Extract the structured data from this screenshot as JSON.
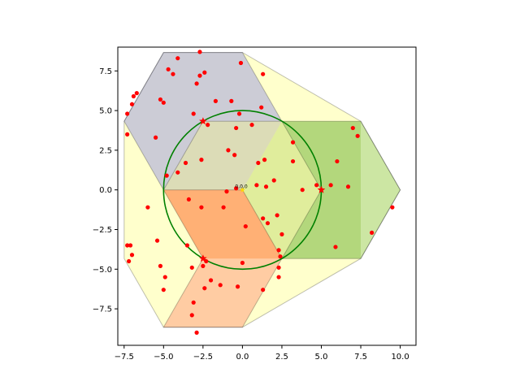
{
  "chart_data": {
    "type": "scatter",
    "title": "",
    "xlabel": "",
    "ylabel": "",
    "xlim": [
      -7.9,
      11.0
    ],
    "ylim": [
      -9.8,
      9.0
    ],
    "grid": false,
    "x_ticks": [
      -7.5,
      -5.0,
      -2.5,
      0.0,
      2.5,
      5.0,
      7.5,
      10.0
    ],
    "x_tick_labels": [
      "−7.5",
      "−5.0",
      "−2.5",
      "0.0",
      "2.5",
      "5.0",
      "7.5",
      "10.0"
    ],
    "y_ticks": [
      -7.5,
      -5.0,
      -2.5,
      0.0,
      2.5,
      5.0,
      7.5
    ],
    "y_tick_labels": [
      "−7.5",
      "−5.0",
      "−2.5",
      "0.0",
      "2.5",
      "5.0",
      "7.5"
    ],
    "outer_hull": {
      "color": "#ffff00",
      "points": [
        [
          -5.0,
          8.66
        ],
        [
          0.0,
          8.66
        ],
        [
          7.5,
          4.33
        ],
        [
          10.0,
          0.0
        ],
        [
          7.5,
          -4.33
        ],
        [
          0.0,
          -8.66
        ],
        [
          -5.0,
          -8.66
        ],
        [
          -7.5,
          -4.33
        ],
        [
          -7.5,
          4.33
        ]
      ]
    },
    "hexagons": [
      {
        "color": "#0000ff",
        "points": [
          [
            -2.5,
            4.33
          ],
          [
            2.5,
            4.33
          ],
          [
            0.0,
            8.66
          ],
          [
            -5.0,
            8.66
          ],
          [
            -7.5,
            4.33
          ],
          [
            -5.0,
            0.0
          ]
        ]
      },
      {
        "color": "#ff0000",
        "points": [
          [
            -2.5,
            -4.33
          ],
          [
            -5.0,
            0.0
          ],
          [
            0.0,
            0.0
          ],
          [
            2.5,
            -4.33
          ],
          [
            0.0,
            -8.66
          ],
          [
            -5.0,
            -8.66
          ]
        ]
      },
      {
        "color": "#008000",
        "points": [
          [
            5.0,
            0.0
          ],
          [
            2.5,
            4.33
          ],
          [
            7.5,
            4.33
          ],
          [
            10.0,
            0.0
          ],
          [
            7.5,
            -4.33
          ],
          [
            2.5,
            -4.33
          ]
        ]
      }
    ],
    "overlap_regions": [
      {
        "color": "#808080",
        "points": [
          [
            -2.5,
            4.33
          ],
          [
            2.5,
            4.33
          ],
          [
            0.0,
            0.0
          ],
          [
            -5.0,
            0.0
          ]
        ]
      },
      {
        "color": "#ff8000",
        "points": [
          [
            -5.0,
            0.0
          ],
          [
            0.0,
            0.0
          ],
          [
            2.5,
            -4.33
          ],
          [
            -2.5,
            -4.33
          ]
        ]
      },
      {
        "color": "#90c020",
        "points": [
          [
            2.5,
            4.33
          ],
          [
            7.5,
            4.33
          ],
          [
            7.5,
            -4.33
          ],
          [
            2.5,
            -4.33
          ],
          [
            0.0,
            0.0
          ]
        ]
      }
    ],
    "circle": {
      "center": [
        0.0,
        0.0
      ],
      "radius": 5.0,
      "color": "#008000"
    },
    "centers": {
      "color": "#ff0000",
      "points": [
        [
          -2.5,
          4.33
        ],
        [
          -2.5,
          -4.33
        ],
        [
          5.0,
          0.0
        ]
      ]
    },
    "origin_marker": {
      "x": 0.0,
      "y": 0.0,
      "label": "0,0,0",
      "color": "#ffd700"
    },
    "points": {
      "color": "#ff0000",
      "values": [
        [
          -2.7,
          8.7
        ],
        [
          -4.1,
          8.3
        ],
        [
          -4.7,
          7.6
        ],
        [
          -4.4,
          7.3
        ],
        [
          -2.4,
          7.4
        ],
        [
          -2.7,
          7.2
        ],
        [
          -0.1,
          8.0
        ],
        [
          1.3,
          7.3
        ],
        [
          -2.9,
          6.7
        ],
        [
          -6.7,
          6.1
        ],
        [
          -6.9,
          5.9
        ],
        [
          -7.0,
          5.4
        ],
        [
          -7.3,
          4.8
        ],
        [
          -5.2,
          5.7
        ],
        [
          -5.0,
          5.5
        ],
        [
          -1.7,
          5.6
        ],
        [
          -0.7,
          5.6
        ],
        [
          1.2,
          5.2
        ],
        [
          -3.1,
          4.8
        ],
        [
          -0.2,
          4.8
        ],
        [
          -2.2,
          4.1
        ],
        [
          -0.4,
          3.9
        ],
        [
          0.6,
          4.1
        ],
        [
          -7.3,
          3.5
        ],
        [
          -5.5,
          3.3
        ],
        [
          3.2,
          3.0
        ],
        [
          -0.9,
          2.5
        ],
        [
          -0.5,
          2.2
        ],
        [
          -2.6,
          1.9
        ],
        [
          -3.6,
          1.7
        ],
        [
          1.4,
          1.9
        ],
        [
          3.2,
          1.8
        ],
        [
          6.0,
          1.8
        ],
        [
          1.0,
          1.7
        ],
        [
          -4.8,
          0.9
        ],
        [
          -4.1,
          1.1
        ],
        [
          2.0,
          0.6
        ],
        [
          0.9,
          0.3
        ],
        [
          1.5,
          0.2
        ],
        [
          3.8,
          0.0
        ],
        [
          4.7,
          0.3
        ],
        [
          5.6,
          0.3
        ],
        [
          6.7,
          0.2
        ],
        [
          7.0,
          3.9
        ],
        [
          7.3,
          3.4
        ],
        [
          -0.4,
          0.1
        ],
        [
          -1.0,
          -0.1
        ],
        [
          -3.4,
          -0.6
        ],
        [
          -1.2,
          -1.1
        ],
        [
          -2.6,
          -1.1
        ],
        [
          -6.0,
          -1.1
        ],
        [
          2.2,
          -1.6
        ],
        [
          1.3,
          -1.8
        ],
        [
          1.6,
          -2.1
        ],
        [
          0.2,
          -2.3
        ],
        [
          2.5,
          -2.8
        ],
        [
          9.5,
          -1.1
        ],
        [
          8.2,
          -2.7
        ],
        [
          -7.3,
          -3.5
        ],
        [
          -7.1,
          -3.5
        ],
        [
          -5.4,
          -3.2
        ],
        [
          -3.5,
          -3.5
        ],
        [
          -2.3,
          -4.5
        ],
        [
          -7.0,
          -4.1
        ],
        [
          -7.2,
          -4.5
        ],
        [
          0.0,
          -4.6
        ],
        [
          2.3,
          -4.9
        ],
        [
          2.4,
          -4.2
        ],
        [
          2.3,
          -3.8
        ],
        [
          5.9,
          -3.6
        ],
        [
          -5.2,
          -4.8
        ],
        [
          -3.2,
          -4.9
        ],
        [
          -2.5,
          -4.8
        ],
        [
          -2.0,
          -5.7
        ],
        [
          -1.4,
          -6.0
        ],
        [
          -0.3,
          -6.1
        ],
        [
          -4.9,
          -5.5
        ],
        [
          -2.4,
          -6.2
        ],
        [
          -5.0,
          -6.3
        ],
        [
          1.3,
          -6.3
        ],
        [
          2.3,
          -5.5
        ],
        [
          -3.1,
          -7.1
        ],
        [
          -3.2,
          -7.9
        ],
        [
          -2.9,
          -9.0
        ]
      ]
    }
  }
}
